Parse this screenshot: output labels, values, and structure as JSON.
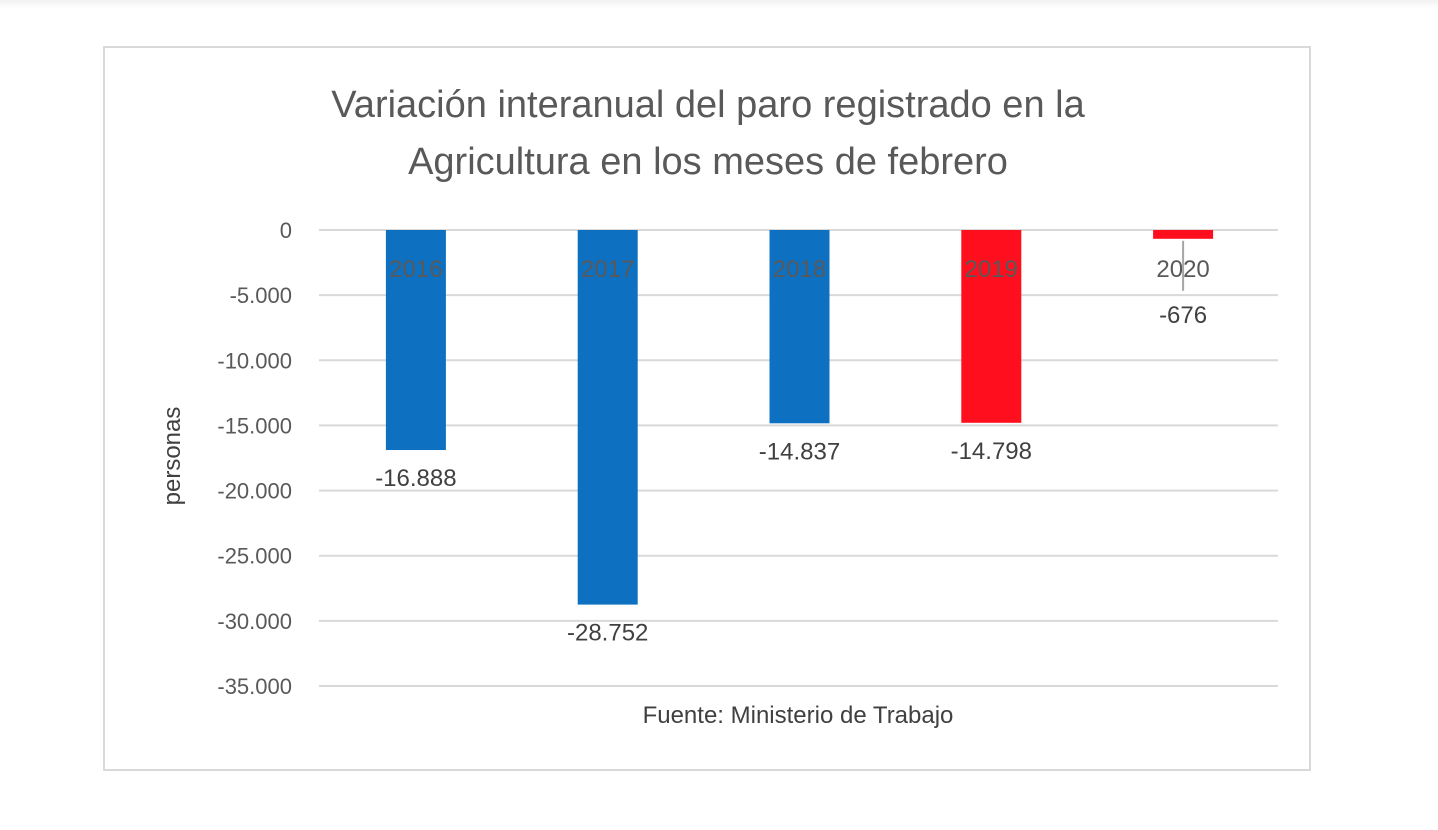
{
  "chart_data": {
    "type": "bar",
    "title_lines": [
      "Variación interanual del paro registrado en la",
      "Agricultura en los meses de febrero"
    ],
    "categories": [
      "2016",
      "2017",
      "2018",
      "2019",
      "2020"
    ],
    "values": [
      -16888,
      -28752,
      -14837,
      -14798,
      -676
    ],
    "value_labels": [
      "-16.888",
      "-28.752",
      "-14.837",
      "-14.798",
      "-676"
    ],
    "colors": [
      "#0E70C0",
      "#0E70C0",
      "#0E70C0",
      "#FF0F1E",
      "#FF0F1E"
    ],
    "ylim": [
      -35000,
      0
    ],
    "yticks": [
      0,
      -5000,
      -10000,
      -15000,
      -20000,
      -25000,
      -30000,
      -35000
    ],
    "ytick_labels": [
      "0",
      "-5.000",
      "-10.000",
      "-15.000",
      "-20.000",
      "-25.000",
      "-30.000",
      "-35.000"
    ],
    "ylabel": "personas",
    "xlabel": "",
    "grid": true,
    "source": "Fuente: Ministerio de Trabajo"
  }
}
